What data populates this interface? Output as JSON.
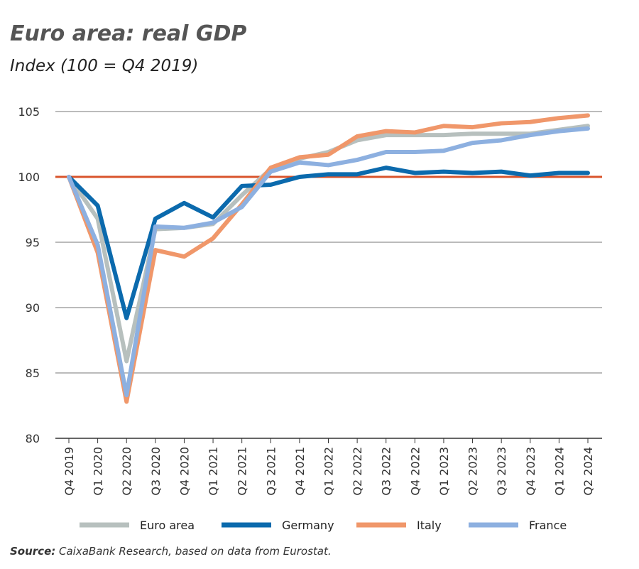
{
  "chart_data": {
    "type": "line",
    "title": "Euro area: real GDP",
    "subtitle": "Index (100 = Q4 2019)",
    "categories": [
      "Q4 2019",
      "Q1 2020",
      "Q2 2020",
      "Q3 2020",
      "Q4 2020",
      "Q1 2021",
      "Q2 2021",
      "Q3 2021",
      "Q4 2021",
      "Q1 2022",
      "Q2 2022",
      "Q3 2022",
      "Q4 2022",
      "Q1 2023",
      "Q2 2023",
      "Q3 2023",
      "Q4 2023",
      "Q1 2024",
      "Q2 2024"
    ],
    "ylim": [
      80,
      105
    ],
    "yticks": [
      80,
      85,
      90,
      95,
      100,
      105
    ],
    "grid": true,
    "reference_line": {
      "value": 100,
      "color": "#d9542c"
    },
    "legend_position": "bottom",
    "series": [
      {
        "name": "Euro area",
        "color": "#b7c0be",
        "values": [
          100,
          96.8,
          85.9,
          96.0,
          96.1,
          96.4,
          98.6,
          100.6,
          101.4,
          101.9,
          102.8,
          103.2,
          103.2,
          103.2,
          103.3,
          103.3,
          103.3,
          103.6,
          103.9
        ]
      },
      {
        "name": "Germany",
        "color": "#0b6aad",
        "values": [
          100,
          97.8,
          89.2,
          96.8,
          98.0,
          96.9,
          99.3,
          99.4,
          100.0,
          100.2,
          100.2,
          100.7,
          100.3,
          100.4,
          100.3,
          100.4,
          100.1,
          100.3,
          100.3
        ]
      },
      {
        "name": "Italy",
        "color": "#f0976a",
        "values": [
          100,
          94.2,
          82.8,
          94.4,
          93.9,
          95.3,
          97.9,
          100.7,
          101.5,
          101.7,
          103.1,
          103.5,
          103.4,
          103.9,
          103.8,
          104.1,
          104.2,
          104.5,
          104.7
        ]
      },
      {
        "name": "France",
        "color": "#8db0e0",
        "values": [
          100,
          94.8,
          83.3,
          96.2,
          96.1,
          96.5,
          97.7,
          100.4,
          101.1,
          100.9,
          101.3,
          101.9,
          101.9,
          102.0,
          102.6,
          102.8,
          103.2,
          103.5,
          103.7
        ]
      }
    ]
  },
  "source": {
    "label": "Source:",
    "text": " CaixaBank Research, based on data from Eurostat."
  }
}
